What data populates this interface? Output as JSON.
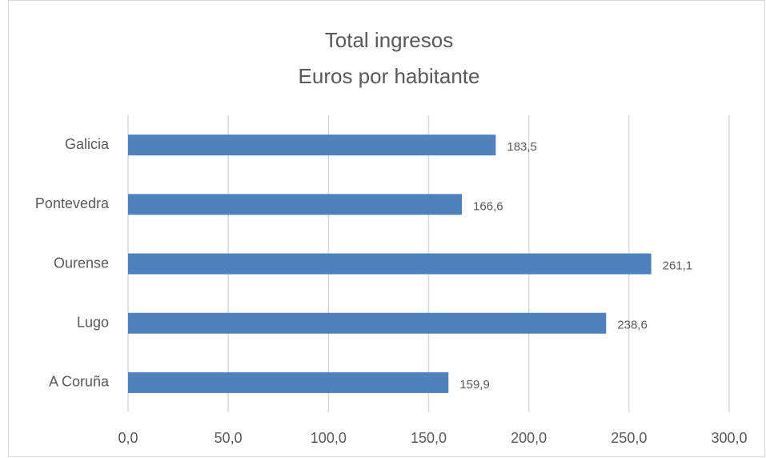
{
  "chart_data": {
    "type": "bar",
    "orientation": "horizontal",
    "title": "Total ingresos",
    "subtitle": "Euros por habitante",
    "categories": [
      "Galicia",
      "Pontevedra",
      "Ourense",
      "Lugo",
      "A Coruña"
    ],
    "values": [
      183.5,
      166.6,
      261.1,
      238.6,
      159.9
    ],
    "value_labels": [
      "183,5",
      "166,6",
      "261,1",
      "238,6",
      "159,9"
    ],
    "color": "#4f81bd",
    "xlim": [
      0,
      300
    ],
    "xticks": [
      {
        "value": 0,
        "label": "0,0"
      },
      {
        "value": 50,
        "label": "50,0"
      },
      {
        "value": 100,
        "label": "100,0"
      },
      {
        "value": 150,
        "label": "150,0"
      },
      {
        "value": 200,
        "label": "200,0"
      },
      {
        "value": 250,
        "label": "250,0"
      },
      {
        "value": 300,
        "label": "300,0"
      }
    ],
    "grid": true
  }
}
